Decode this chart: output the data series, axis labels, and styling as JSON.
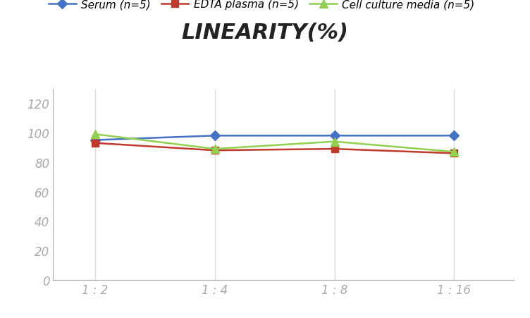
{
  "title": "LINEARITY(%)",
  "x_labels": [
    "1 : 2",
    "1 : 4",
    "1 : 8",
    "1 : 16"
  ],
  "x_positions": [
    0,
    1,
    2,
    3
  ],
  "series": [
    {
      "label": "Serum (n=5)",
      "values": [
        95,
        98,
        98,
        98
      ],
      "color": "#4472C4",
      "marker": "D",
      "linewidth": 1.8,
      "markersize": 7
    },
    {
      "label": "EDTA plasma (n=5)",
      "values": [
        93,
        88,
        89,
        86
      ],
      "color": "#C0392B",
      "marker": "s",
      "linewidth": 1.8,
      "markersize": 7
    },
    {
      "label": "Cell culture media (n=5)",
      "values": [
        99,
        89,
        94,
        87
      ],
      "color": "#92D050",
      "marker": "^",
      "linewidth": 1.8,
      "markersize": 8
    }
  ],
  "ylim": [
    0,
    130
  ],
  "yticks": [
    0,
    20,
    40,
    60,
    80,
    100,
    120
  ],
  "xlim": [
    -0.35,
    3.5
  ],
  "background_color": "#FFFFFF",
  "grid_color": "#DDDDDD",
  "title_fontsize": 22,
  "legend_fontsize": 11,
  "tick_fontsize": 12,
  "tick_color": "#AAAAAA",
  "spine_color": "#AAAAAA"
}
